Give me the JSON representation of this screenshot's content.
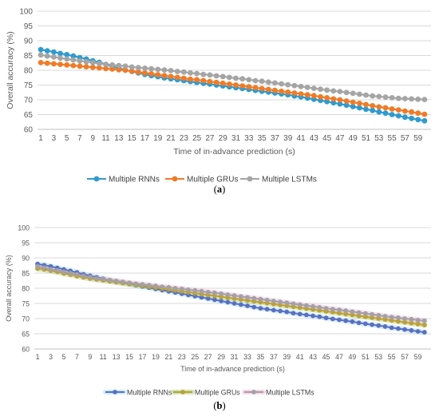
{
  "chart_data": [
    {
      "type": "line",
      "panel_label_open": "(",
      "panel_label_letter": "a",
      "panel_label_close": ")",
      "xlabel": "Time of in-advance prediction (s)",
      "ylabel": "Overall accuracy (%)",
      "ylim": [
        60,
        100
      ],
      "yticks": [
        "60",
        "65",
        "70",
        "75",
        "80",
        "85",
        "90",
        "95",
        "100"
      ],
      "xticks": [
        "1",
        "3",
        "5",
        "7",
        "9",
        "11",
        "13",
        "15",
        "17",
        "19",
        "21",
        "23",
        "25",
        "27",
        "29",
        "31",
        "33",
        "35",
        "37",
        "39",
        "41",
        "43",
        "45",
        "47",
        "49",
        "51",
        "53",
        "55",
        "57",
        "59"
      ],
      "x": [
        1,
        2,
        3,
        4,
        5,
        6,
        7,
        8,
        9,
        10,
        11,
        12,
        13,
        14,
        15,
        16,
        17,
        18,
        19,
        20,
        21,
        22,
        23,
        24,
        25,
        26,
        27,
        28,
        29,
        30,
        31,
        32,
        33,
        34,
        35,
        36,
        37,
        38,
        39,
        40,
        41,
        42,
        43,
        44,
        45,
        46,
        47,
        48,
        49,
        50,
        51,
        52,
        53,
        54,
        55,
        56,
        57,
        58,
        59,
        60
      ],
      "grid": "horizontal",
      "legend": "bottom",
      "series": [
        {
          "name": "Multiple RNNs",
          "color": "#2e9bd0",
          "values": [
            87.0,
            86.6,
            86.2,
            85.7,
            85.3,
            84.8,
            84.3,
            83.8,
            83.2,
            82.7,
            82.0,
            81.3,
            80.7,
            80.1,
            79.6,
            79.1,
            78.6,
            78.2,
            77.8,
            77.4,
            77.1,
            76.8,
            76.5,
            76.2,
            75.9,
            75.6,
            75.3,
            75.0,
            74.7,
            74.4,
            74.1,
            73.8,
            73.5,
            73.2,
            72.9,
            72.6,
            72.3,
            72.0,
            71.7,
            71.3,
            71.0,
            70.6,
            70.2,
            69.8,
            69.4,
            69.0,
            68.6,
            68.2,
            67.7,
            67.3,
            66.8,
            66.4,
            65.9,
            65.5,
            65.0,
            64.6,
            64.1,
            63.7,
            63.3,
            62.9
          ]
        },
        {
          "name": "Multiple GRUs",
          "color": "#f07b27",
          "values": [
            82.6,
            82.4,
            82.2,
            82.0,
            81.8,
            81.6,
            81.4,
            81.2,
            81.0,
            80.8,
            80.6,
            80.4,
            80.2,
            80.0,
            79.7,
            79.4,
            79.1,
            78.8,
            78.5,
            78.2,
            77.9,
            77.6,
            77.3,
            77.0,
            76.8,
            76.5,
            76.2,
            75.9,
            75.6,
            75.3,
            75.0,
            74.7,
            74.4,
            74.1,
            73.8,
            73.5,
            73.2,
            72.9,
            72.6,
            72.3,
            72.0,
            71.7,
            71.4,
            71.0,
            70.7,
            70.3,
            70.0,
            69.6,
            69.2,
            68.8,
            68.4,
            68.0,
            67.6,
            67.3,
            66.9,
            66.6,
            66.2,
            65.9,
            65.5,
            65.1
          ]
        },
        {
          "name": "Multiple LSTMs",
          "color": "#a5a5a5",
          "values": [
            85.2,
            84.8,
            84.5,
            84.1,
            83.8,
            83.5,
            83.2,
            82.9,
            82.6,
            82.3,
            82.0,
            81.8,
            81.6,
            81.4,
            81.1,
            80.9,
            80.7,
            80.5,
            80.3,
            80.1,
            79.9,
            79.6,
            79.4,
            79.1,
            78.9,
            78.6,
            78.4,
            78.1,
            77.9,
            77.6,
            77.3,
            77.1,
            76.8,
            76.5,
            76.3,
            76.0,
            75.7,
            75.4,
            75.1,
            74.8,
            74.5,
            74.2,
            73.9,
            73.6,
            73.3,
            73.0,
            72.8,
            72.5,
            72.2,
            71.9,
            71.6,
            71.3,
            71.1,
            70.9,
            70.7,
            70.5,
            70.4,
            70.3,
            70.2,
            70.1
          ]
        }
      ]
    },
    {
      "type": "line",
      "panel_label_open": "(",
      "panel_label_letter": "b",
      "panel_label_close": ")",
      "xlabel": "Time of in-advance prediction (s)",
      "ylabel": "Overall accuracy (%)",
      "ylim": [
        60,
        100
      ],
      "yticks": [
        "60",
        "65",
        "70",
        "75",
        "80",
        "85",
        "90",
        "95",
        "100"
      ],
      "xticks": [
        "1",
        "3",
        "5",
        "7",
        "9",
        "11",
        "13",
        "15",
        "17",
        "19",
        "21",
        "23",
        "25",
        "27",
        "29",
        "31",
        "33",
        "35",
        "37",
        "39",
        "41",
        "43",
        "45",
        "47",
        "49",
        "51",
        "53",
        "55",
        "57",
        "59"
      ],
      "x": [
        1,
        2,
        3,
        4,
        5,
        6,
        7,
        8,
        9,
        10,
        11,
        12,
        13,
        14,
        15,
        16,
        17,
        18,
        19,
        20,
        21,
        22,
        23,
        24,
        25,
        26,
        27,
        28,
        29,
        30,
        31,
        32,
        33,
        34,
        35,
        36,
        37,
        38,
        39,
        40,
        41,
        42,
        43,
        44,
        45,
        46,
        47,
        48,
        49,
        50,
        51,
        52,
        53,
        54,
        55,
        56,
        57,
        58,
        59,
        60
      ],
      "grid": "horizontal",
      "legend": "bottom",
      "series": [
        {
          "name": "Multiple RNNs",
          "color": "#5b6fc4",
          "band_color": "#a6e0f2",
          "values": [
            88.0,
            87.6,
            87.2,
            86.7,
            86.2,
            85.7,
            85.2,
            84.6,
            84.1,
            83.6,
            83.1,
            82.6,
            82.2,
            81.8,
            81.4,
            81.0,
            80.6,
            80.2,
            79.8,
            79.4,
            79.0,
            78.6,
            78.2,
            77.8,
            77.4,
            77.0,
            76.6,
            76.2,
            75.8,
            75.4,
            75.0,
            74.6,
            74.2,
            73.8,
            73.4,
            73.1,
            72.8,
            72.5,
            72.2,
            71.8,
            71.5,
            71.2,
            70.9,
            70.6,
            70.2,
            69.9,
            69.6,
            69.3,
            69.0,
            68.6,
            68.3,
            68.0,
            67.7,
            67.4,
            67.0,
            66.7,
            66.4,
            66.1,
            65.8,
            65.5
          ]
        },
        {
          "name": "Multiple GRUs",
          "color": "#bfa033",
          "band_color": "#9fcf7a",
          "values": [
            86.5,
            86.2,
            85.8,
            85.4,
            84.9,
            84.5,
            84.0,
            83.6,
            83.2,
            82.9,
            82.6,
            82.3,
            82.0,
            81.7,
            81.4,
            81.1,
            80.8,
            80.5,
            80.2,
            79.9,
            79.6,
            79.3,
            79.0,
            78.7,
            78.4,
            78.1,
            77.8,
            77.5,
            77.2,
            76.9,
            76.6,
            76.3,
            76.0,
            75.7,
            75.4,
            75.1,
            74.8,
            74.5,
            74.2,
            73.9,
            73.6,
            73.3,
            73.0,
            72.7,
            72.4,
            72.1,
            71.8,
            71.5,
            71.2,
            70.9,
            70.6,
            70.3,
            70.0,
            69.7,
            69.4,
            69.1,
            68.8,
            68.5,
            68.2,
            67.9
          ]
        },
        {
          "name": "Multiple LSTMs",
          "color": "#a3a0a8",
          "band_color": "#f2b7d3",
          "values": [
            87.2,
            86.8,
            86.3,
            85.9,
            85.4,
            85.0,
            84.6,
            84.1,
            83.7,
            83.3,
            83.0,
            82.7,
            82.4,
            82.1,
            81.8,
            81.5,
            81.3,
            81.0,
            80.8,
            80.5,
            80.3,
            80.0,
            79.8,
            79.5,
            79.3,
            79.0,
            78.7,
            78.5,
            78.2,
            77.9,
            77.6,
            77.3,
            77.0,
            76.7,
            76.4,
            76.1,
            75.8,
            75.5,
            75.2,
            74.9,
            74.6,
            74.3,
            74.0,
            73.7,
            73.4,
            73.1,
            72.9,
            72.6,
            72.3,
            72.0,
            71.7,
            71.4,
            71.1,
            70.8,
            70.5,
            70.3,
            70.0,
            69.8,
            69.5,
            69.3
          ]
        }
      ]
    }
  ]
}
